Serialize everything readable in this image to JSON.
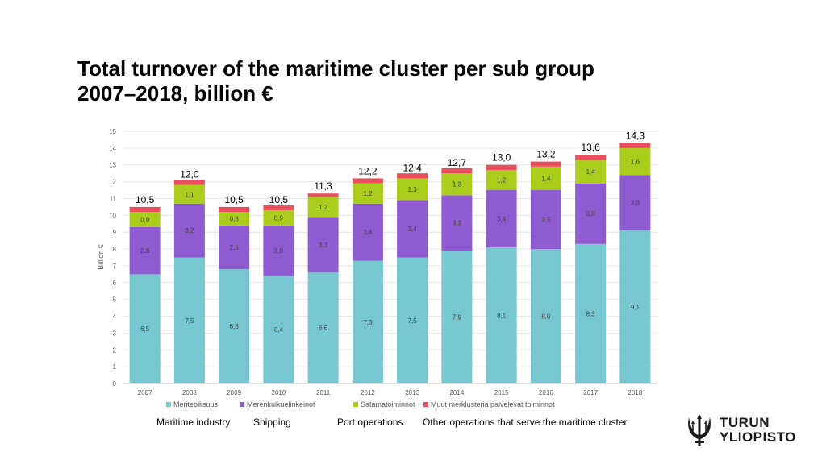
{
  "title": {
    "line1": "Total turnover of the maritime cluster per sub group",
    "line2": "2007–2018, billion €"
  },
  "english_labels": [
    "Maritime industry",
    "Shipping",
    "Port operations",
    "Other operations that serve the maritime cluster"
  ],
  "logo": {
    "line1": "TURUN",
    "line2": "YLIOPISTO",
    "icon": "trident-emblem-icon"
  },
  "colors": {
    "meriteollisuus": "#76C7D0",
    "merenkulkuelinkeinot": "#8E5BD1",
    "satamatoiminnot": "#AACC1B",
    "muut": "#EB4F5E"
  },
  "chart_data": {
    "type": "bar",
    "stacked": true,
    "categories": [
      "2007",
      "2008",
      "2009",
      "2010",
      "2011",
      "2012",
      "2013",
      "2014",
      "2015",
      "2016",
      "2017",
      "2018"
    ],
    "series": [
      {
        "name": "Meriteollisuus",
        "values": [
          6.5,
          7.5,
          6.8,
          6.4,
          6.6,
          7.3,
          7.5,
          7.9,
          8.1,
          8.0,
          8.3,
          9.1
        ],
        "labels": [
          "6,5",
          "7,5",
          "6,8",
          "6,4",
          "6,6",
          "7,3",
          "7,5",
          "7,9",
          "8,1",
          "8,0",
          "8,3",
          "9,1"
        ]
      },
      {
        "name": "Merenkulkuelinkeinot",
        "values": [
          2.8,
          3.2,
          2.6,
          3.0,
          3.3,
          3.4,
          3.4,
          3.3,
          3.4,
          3.5,
          3.6,
          3.3
        ],
        "labels": [
          "2,8",
          "3,2",
          "2,6",
          "3,0",
          "3,3",
          "3,4",
          "3,4",
          "3,3",
          "3,4",
          "3,5",
          "3,6",
          "3,3"
        ]
      },
      {
        "name": "Satamatoiminnot",
        "values": [
          0.9,
          1.1,
          0.8,
          0.9,
          1.2,
          1.2,
          1.3,
          1.3,
          1.2,
          1.4,
          1.4,
          1.6
        ],
        "labels": [
          "0,9",
          "1,1",
          "0,8",
          "0,9",
          "1,2",
          "1,2",
          "1,3",
          "1,3",
          "1,2",
          "1,4",
          "1,4",
          "1,6"
        ]
      },
      {
        "name": "Muut merklusteria palvelevat toiminnot",
        "values": [
          0.3,
          0.3,
          0.3,
          0.3,
          0.2,
          0.3,
          0.3,
          0.3,
          0.3,
          0.3,
          0.3,
          0.3
        ],
        "labels": [
          "",
          "",
          "",
          "",
          "",
          "",
          "",
          "",
          "",
          "",
          "",
          ""
        ]
      }
    ],
    "totals": [
      "10,5",
      "12,0",
      "10,5",
      "10,5",
      "11,3",
      "12,2",
      "12,4",
      "12,7",
      "13,0",
      "13,2",
      "13,6",
      "14,3"
    ],
    "total_values": [
      10.5,
      12.0,
      10.5,
      10.5,
      11.3,
      12.2,
      12.4,
      12.7,
      13.0,
      13.2,
      13.6,
      14.3
    ],
    "ylabel": "Billion €",
    "ylim": [
      0,
      15
    ],
    "yticks": [
      "0",
      "1",
      "2",
      "3",
      "4",
      "5",
      "6",
      "7",
      "8",
      "9",
      "10",
      "11",
      "12",
      "13",
      "14",
      "15"
    ],
    "grid": true,
    "legend_position": "bottom"
  }
}
